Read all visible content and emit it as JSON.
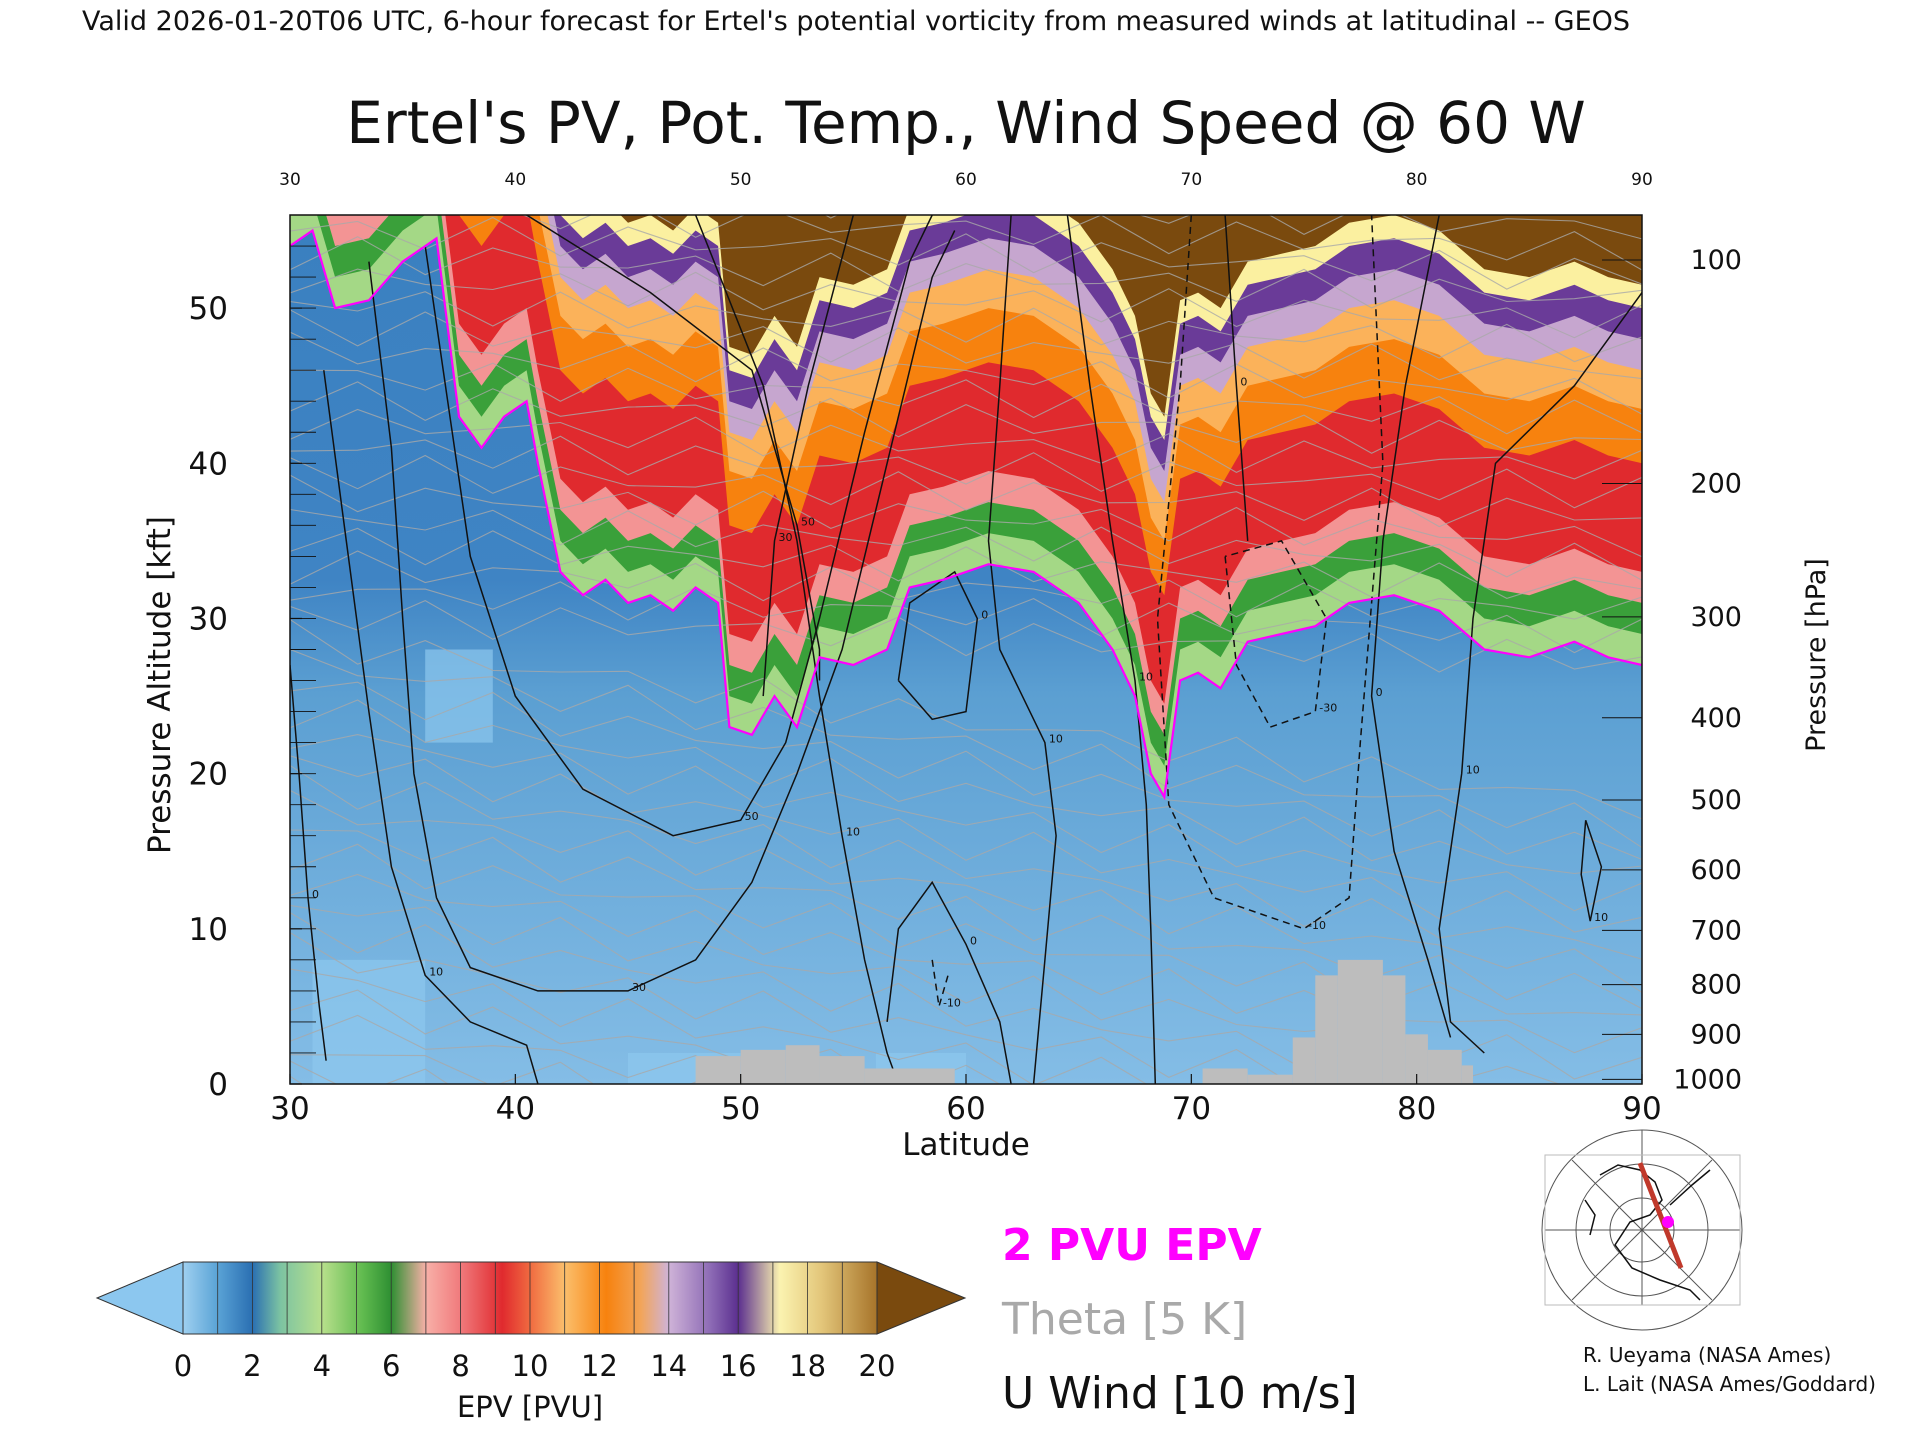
{
  "header": {
    "valid_line": "Valid 2026-01-20T06 UTC, 6-hour forecast for Ertel's potential vorticity from measured winds at latitudinal -- GEOS"
  },
  "chart_data": {
    "type": "heatmap",
    "title": "Ertel's PV, Pot. Temp., Wind Speed @ 60 W",
    "xlabel": "Latitude",
    "ylabel": "Pressure Altitude [kft]",
    "y2label": "Pressure [hPa]",
    "xlim": [
      30,
      90
    ],
    "ylim": [
      0,
      56
    ],
    "x_ticks": [
      30,
      40,
      50,
      60,
      70,
      80,
      90
    ],
    "x_ticks_top": [
      30,
      40,
      50,
      60,
      70,
      80,
      90
    ],
    "y_ticks": [
      0,
      10,
      20,
      30,
      40,
      50
    ],
    "pressure_ticks": [
      {
        "hPa": 100,
        "kft": 53.1
      },
      {
        "hPa": 200,
        "kft": 38.7
      },
      {
        "hPa": 300,
        "kft": 30.1
      },
      {
        "hPa": 400,
        "kft": 23.6
      },
      {
        "hPa": 500,
        "kft": 18.3
      },
      {
        "hPa": 600,
        "kft": 13.8
      },
      {
        "hPa": 700,
        "kft": 9.9
      },
      {
        "hPa": 800,
        "kft": 6.4
      },
      {
        "hPa": 900,
        "kft": 3.2
      },
      {
        "hPa": 1000,
        "kft": 0.3
      }
    ],
    "tropopause_2pvu": [
      {
        "lat": 30.0,
        "kft": 54.0
      },
      {
        "lat": 31.0,
        "kft": 55.0
      },
      {
        "lat": 32.0,
        "kft": 50.0
      },
      {
        "lat": 33.5,
        "kft": 50.5
      },
      {
        "lat": 35.0,
        "kft": 53.0
      },
      {
        "lat": 36.5,
        "kft": 54.5
      },
      {
        "lat": 37.5,
        "kft": 43.0
      },
      {
        "lat": 38.5,
        "kft": 41.0
      },
      {
        "lat": 39.5,
        "kft": 43.0
      },
      {
        "lat": 40.5,
        "kft": 44.0
      },
      {
        "lat": 41.0,
        "kft": 40.0
      },
      {
        "lat": 42.0,
        "kft": 33.0
      },
      {
        "lat": 43.0,
        "kft": 31.5
      },
      {
        "lat": 44.0,
        "kft": 32.5
      },
      {
        "lat": 45.0,
        "kft": 31.0
      },
      {
        "lat": 46.0,
        "kft": 31.5
      },
      {
        "lat": 47.0,
        "kft": 30.5
      },
      {
        "lat": 48.0,
        "kft": 32.0
      },
      {
        "lat": 49.0,
        "kft": 31.0
      },
      {
        "lat": 49.5,
        "kft": 23.0
      },
      {
        "lat": 50.5,
        "kft": 22.5
      },
      {
        "lat": 51.5,
        "kft": 25.0
      },
      {
        "lat": 52.5,
        "kft": 23.0
      },
      {
        "lat": 53.5,
        "kft": 27.5
      },
      {
        "lat": 55.0,
        "kft": 27.0
      },
      {
        "lat": 56.5,
        "kft": 28.0
      },
      {
        "lat": 57.5,
        "kft": 32.0
      },
      {
        "lat": 59.0,
        "kft": 32.5
      },
      {
        "lat": 61.0,
        "kft": 33.5
      },
      {
        "lat": 63.0,
        "kft": 33.0
      },
      {
        "lat": 65.0,
        "kft": 31.0
      },
      {
        "lat": 66.5,
        "kft": 28.0
      },
      {
        "lat": 67.5,
        "kft": 25.0
      },
      {
        "lat": 68.2,
        "kft": 20.0
      },
      {
        "lat": 68.8,
        "kft": 18.5
      },
      {
        "lat": 69.5,
        "kft": 26.0
      },
      {
        "lat": 70.3,
        "kft": 26.5
      },
      {
        "lat": 71.3,
        "kft": 25.5
      },
      {
        "lat": 72.5,
        "kft": 28.5
      },
      {
        "lat": 74.0,
        "kft": 29.0
      },
      {
        "lat": 75.5,
        "kft": 29.5
      },
      {
        "lat": 77.0,
        "kft": 31.0
      },
      {
        "lat": 79.0,
        "kft": 31.5
      },
      {
        "lat": 81.0,
        "kft": 30.5
      },
      {
        "lat": 83.0,
        "kft": 28.0
      },
      {
        "lat": 85.0,
        "kft": 27.5
      },
      {
        "lat": 87.0,
        "kft": 28.5
      },
      {
        "lat": 88.5,
        "kft": 27.5
      },
      {
        "lat": 90.0,
        "kft": 27.0
      }
    ],
    "u_wind_contours": [
      {
        "label": "0",
        "dashed": false,
        "points": [
          [
            30.0,
            27.0
          ],
          [
            30.4,
            20.0
          ],
          [
            30.8,
            12.0
          ],
          [
            31.3,
            5.0
          ],
          [
            31.6,
            1.5
          ]
        ]
      },
      {
        "label": "10",
        "dashed": false,
        "points": [
          [
            31.5,
            46.0
          ],
          [
            32.5,
            35.0
          ],
          [
            33.5,
            24.0
          ],
          [
            34.5,
            14.0
          ],
          [
            36.0,
            7.0
          ],
          [
            38.0,
            4.0
          ],
          [
            40.5,
            2.5
          ],
          [
            41.0,
            0.0
          ]
        ]
      },
      {
        "label": "30",
        "dashed": false,
        "points": [
          [
            33.5,
            53.0
          ],
          [
            34.5,
            41.0
          ],
          [
            35.0,
            30.0
          ],
          [
            35.5,
            20.0
          ],
          [
            36.5,
            12.0
          ],
          [
            38.0,
            7.5
          ],
          [
            41.0,
            6.0
          ],
          [
            45.0,
            6.0
          ],
          [
            48.0,
            8.0
          ],
          [
            50.5,
            13.0
          ],
          [
            52.5,
            20.0
          ],
          [
            54.5,
            28.0
          ],
          [
            56.5,
            40.0
          ],
          [
            58.5,
            52.0
          ],
          [
            59.5,
            55.0
          ]
        ]
      },
      {
        "label": "50",
        "dashed": false,
        "points": [
          [
            36.0,
            54.0
          ],
          [
            37.0,
            44.0
          ],
          [
            38.0,
            34.0
          ],
          [
            40.0,
            25.0
          ],
          [
            43.0,
            19.0
          ],
          [
            47.0,
            16.0
          ],
          [
            50.0,
            17.0
          ],
          [
            52.0,
            22.0
          ],
          [
            53.5,
            30.0
          ],
          [
            55.5,
            42.0
          ],
          [
            57.5,
            53.0
          ],
          [
            58.5,
            56.0
          ]
        ]
      },
      {
        "label": "50",
        "dashed": false,
        "points": [
          [
            40.5,
            56.0
          ],
          [
            46.0,
            51.0
          ],
          [
            50.5,
            46.0
          ],
          [
            52.5,
            36.0
          ],
          [
            53.5,
            28.0
          ],
          [
            53.5,
            26.0
          ]
        ]
      },
      {
        "label": "10",
        "dashed": false,
        "points": [
          [
            48.0,
            56.0
          ],
          [
            51.0,
            45.0
          ],
          [
            52.5,
            35.0
          ],
          [
            53.5,
            25.0
          ],
          [
            54.5,
            16.0
          ],
          [
            55.5,
            8.0
          ],
          [
            56.5,
            2.0
          ],
          [
            57.0,
            0.0
          ]
        ]
      },
      {
        "label": "30",
        "dashed": false,
        "points": [
          [
            55.0,
            56.0
          ],
          [
            53.0,
            45.0
          ],
          [
            51.5,
            35.0
          ],
          [
            51.0,
            25.0
          ]
        ]
      },
      {
        "label": "0",
        "dashed": false,
        "points": [
          [
            56.5,
            4.0
          ],
          [
            57.0,
            10.0
          ],
          [
            58.5,
            13.0
          ],
          [
            60.0,
            9.0
          ],
          [
            61.5,
            4.0
          ],
          [
            62.0,
            0.0
          ]
        ]
      },
      {
        "label": "0",
        "dashed": false,
        "points": [
          [
            57.0,
            26.0
          ],
          [
            57.5,
            31.0
          ],
          [
            59.5,
            33.0
          ],
          [
            60.5,
            30.0
          ],
          [
            60.0,
            24.0
          ],
          [
            58.5,
            23.5
          ],
          [
            57.0,
            26.0
          ]
        ]
      },
      {
        "label": "10",
        "dashed": false,
        "points": [
          [
            62.0,
            56.0
          ],
          [
            61.5,
            45.0
          ],
          [
            61.0,
            35.0
          ],
          [
            61.5,
            28.0
          ],
          [
            63.5,
            22.0
          ],
          [
            64.0,
            16.0
          ],
          [
            63.5,
            8.0
          ],
          [
            63.0,
            0.0
          ]
        ]
      },
      {
        "label": "10",
        "dashed": false,
        "points": [
          [
            64.5,
            56.0
          ],
          [
            65.5,
            45.0
          ],
          [
            66.5,
            35.0
          ],
          [
            67.5,
            26.0
          ],
          [
            68.0,
            18.0
          ],
          [
            68.2,
            10.0
          ],
          [
            68.4,
            0.0
          ]
        ]
      },
      {
        "label": "0",
        "dashed": false,
        "points": [
          [
            71.5,
            56.0
          ],
          [
            72.0,
            45.0
          ],
          [
            72.5,
            35.0
          ]
        ]
      },
      {
        "label": "-10",
        "dashed": true,
        "points": [
          [
            70.0,
            56.0
          ],
          [
            69.5,
            45.0
          ],
          [
            68.5,
            30.0
          ],
          [
            69.0,
            18.0
          ],
          [
            71.0,
            12.0
          ],
          [
            75.0,
            10.0
          ],
          [
            77.0,
            12.0
          ],
          [
            77.5,
            22.0
          ],
          [
            78.5,
            40.0
          ],
          [
            78.0,
            56.0
          ]
        ]
      },
      {
        "label": "-30",
        "dashed": true,
        "points": [
          [
            71.5,
            34.0
          ],
          [
            72.0,
            27.0
          ],
          [
            73.5,
            23.0
          ],
          [
            75.5,
            24.0
          ],
          [
            76.0,
            30.0
          ],
          [
            74.0,
            35.0
          ],
          [
            71.5,
            34.0
          ]
        ]
      },
      {
        "label": "0",
        "dashed": false,
        "points": [
          [
            81.0,
            56.0
          ],
          [
            79.5,
            45.0
          ],
          [
            78.5,
            35.0
          ],
          [
            78.0,
            25.0
          ],
          [
            79.0,
            15.0
          ],
          [
            80.5,
            8.0
          ],
          [
            81.5,
            3.0
          ]
        ]
      },
      {
        "label": "10",
        "dashed": false,
        "points": [
          [
            90.0,
            51.0
          ],
          [
            87.0,
            45.0
          ],
          [
            83.5,
            40.0
          ],
          [
            82.5,
            30.0
          ],
          [
            82.0,
            20.0
          ],
          [
            81.0,
            10.0
          ],
          [
            81.5,
            4.0
          ],
          [
            83.0,
            2.0
          ]
        ]
      },
      {
        "label": "10",
        "dashed": false,
        "points": [
          [
            87.5,
            17.0
          ],
          [
            87.3,
            13.5
          ],
          [
            87.7,
            10.5
          ],
          [
            88.2,
            14.0
          ],
          [
            87.5,
            17.0
          ]
        ]
      },
      {
        "label": "-10",
        "dashed": true,
        "points": [
          [
            58.5,
            8.0
          ],
          [
            58.8,
            5.0
          ],
          [
            59.2,
            7.0
          ]
        ]
      }
    ],
    "terrain": [
      {
        "lat0": 48.0,
        "lat1": 50.0,
        "kft": 1.8
      },
      {
        "lat0": 50.0,
        "lat1": 52.0,
        "kft": 2.2
      },
      {
        "lat0": 52.0,
        "lat1": 53.5,
        "kft": 2.5
      },
      {
        "lat0": 53.5,
        "lat1": 55.5,
        "kft": 1.8
      },
      {
        "lat0": 55.5,
        "lat1": 59.5,
        "kft": 1.0
      },
      {
        "lat0": 70.5,
        "lat1": 72.5,
        "kft": 1.0
      },
      {
        "lat0": 72.5,
        "lat1": 74.5,
        "kft": 0.6
      },
      {
        "lat0": 74.5,
        "lat1": 75.5,
        "kft": 3.0
      },
      {
        "lat0": 75.5,
        "lat1": 76.5,
        "kft": 7.0
      },
      {
        "lat0": 76.5,
        "lat1": 78.5,
        "kft": 8.0
      },
      {
        "lat0": 78.5,
        "lat1": 79.5,
        "kft": 7.0
      },
      {
        "lat0": 79.5,
        "lat1": 80.5,
        "kft": 3.2
      },
      {
        "lat0": 80.5,
        "lat1": 82.0,
        "kft": 2.2
      },
      {
        "lat0": 82.0,
        "lat1": 82.5,
        "kft": 1.2
      }
    ],
    "colorbar": {
      "label": "EPV [PVU]",
      "ticks": [
        0,
        2,
        4,
        6,
        8,
        10,
        12,
        14,
        16,
        18,
        20
      ],
      "low_extension_color": "#8cc7ef",
      "high_extension_color": "#7a4a0e",
      "colors": [
        "#7ec3ea",
        "#2f79b8",
        "#a4d886",
        "#3aa03a",
        "#f39494",
        "#e02a2e",
        "#fbb25a",
        "#f7820e",
        "#c6a6cf",
        "#6a3b98",
        "#fbf0a0",
        "#7a4a0e"
      ]
    },
    "legend": {
      "epv_contour": "2 PVU EPV",
      "theta": "Theta [5 K]",
      "u_wind": "U Wind [10 m/s]"
    },
    "colors": {
      "epv_contour": "#ff00ff",
      "theta": "#a9a9a9",
      "u_wind": "#111111",
      "terrain": "#bdbdbd"
    }
  },
  "credits": {
    "line1": "R. Ueyama (NASA Ames)",
    "line2": "L. Lait (NASA Ames/Goddard)"
  }
}
